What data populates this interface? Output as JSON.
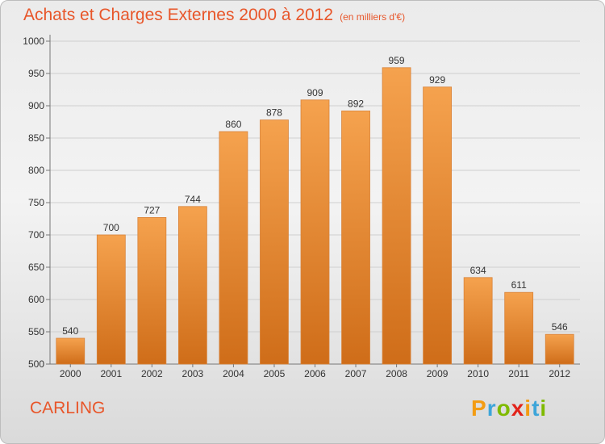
{
  "page": {
    "title": "Achats et Charges Externes 2000 à 2012",
    "unit": "(en milliers d'€)",
    "commune": "CARLING",
    "logo": {
      "letters": [
        "P",
        "r",
        "o",
        "x",
        "i",
        "t",
        "i"
      ],
      "colors": [
        "#f39c12",
        "#3da5d9",
        "#7fba00",
        "#e2231a",
        "#f39c12",
        "#3da5d9",
        "#7fba00"
      ]
    }
  },
  "chart_data": {
    "type": "bar",
    "title": "Achats et Charges Externes 2000 à 2012",
    "unit": "(en milliers d'€)",
    "categories": [
      "2000",
      "2001",
      "2002",
      "2003",
      "2004",
      "2005",
      "2006",
      "2007",
      "2008",
      "2009",
      "2010",
      "2011",
      "2012"
    ],
    "values": [
      540,
      700,
      727,
      744,
      860,
      878,
      909,
      892,
      959,
      929,
      634,
      611,
      546
    ],
    "ylim": [
      500,
      1000
    ],
    "yticks": [
      500,
      550,
      600,
      650,
      700,
      750,
      800,
      850,
      900,
      950,
      1000
    ],
    "grid": true,
    "colors": {
      "bar_top": "#f5a24e",
      "bar_bottom": "#cf6d19",
      "bar_edge": "#d8833a",
      "text": "#333333",
      "accent": "#e8562a"
    }
  }
}
